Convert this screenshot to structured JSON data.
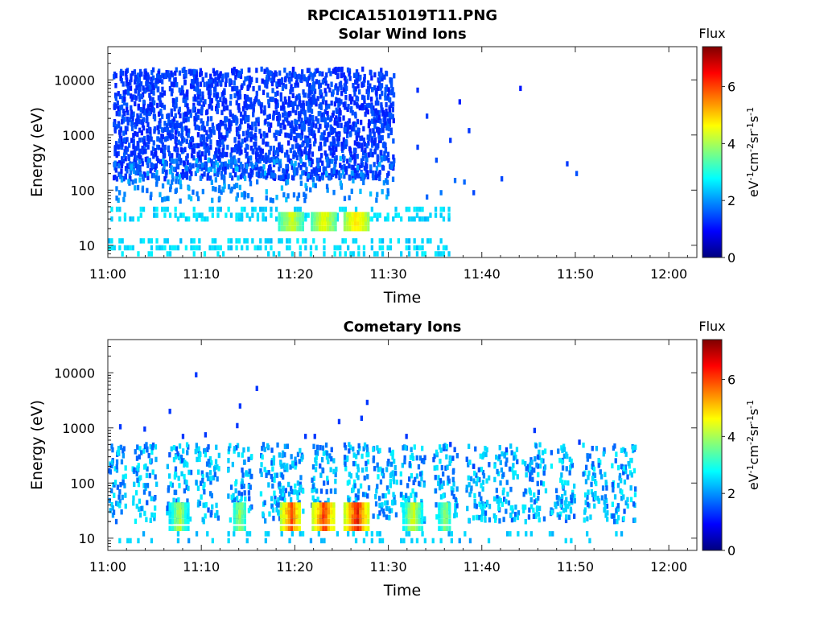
{
  "figure_title": "RPCICA151019T11.PNG",
  "colors": {
    "colormap": [
      "#00007f",
      "#0000ff",
      "#007fff",
      "#00ffff",
      "#7fff7f",
      "#ffff00",
      "#ff7f00",
      "#ff0000",
      "#7f0000"
    ]
  },
  "chart_data": [
    {
      "type": "heatmap",
      "title": "Solar Wind Ions",
      "xlabel": "Time",
      "ylabel": "Energy (eV)",
      "x_ticks": [
        "11:00",
        "11:10",
        "11:20",
        "11:30",
        "11:40",
        "11:50",
        "12:00"
      ],
      "x_range_minutes": [
        0,
        63
      ],
      "y_scale": "log",
      "y_ticks": [
        10,
        100,
        1000,
        10000
      ],
      "y_tick_labels": [
        "10",
        "100",
        "1000",
        "10000"
      ],
      "y_range": [
        6,
        40000
      ],
      "colorbar": {
        "title": "Flux",
        "unit_label": "eV-1cm-2sr-1s-1",
        "range": [
          0,
          7.4
        ],
        "ticks": [
          "0",
          "2",
          "4",
          "6"
        ]
      },
      "grid": false,
      "summary": {
        "high_energy_counts_until_minute": 34,
        "peak_flux_near_minutes": [
          19.5,
          23,
          26.5
        ],
        "peak_energy_eV": 25
      }
    },
    {
      "type": "heatmap",
      "title": "Cometary Ions",
      "xlabel": "Time",
      "ylabel": "Energy (eV)",
      "x_ticks": [
        "11:00",
        "11:10",
        "11:20",
        "11:30",
        "11:40",
        "11:50",
        "12:00"
      ],
      "x_range_minutes": [
        0,
        63
      ],
      "y_scale": "log",
      "y_ticks": [
        10,
        100,
        1000,
        10000
      ],
      "y_tick_labels": [
        "10",
        "100",
        "1000",
        "10000"
      ],
      "y_range": [
        6,
        40000
      ],
      "colorbar": {
        "title": "Flux",
        "unit_label": "eV-1cm-2sr-1s-1",
        "range": [
          0,
          7.4
        ],
        "ticks": [
          "0",
          "2",
          "4",
          "6"
        ]
      },
      "grid": false,
      "summary": {
        "bursts_at_minutes": [
          0.5,
          3.8,
          7.5,
          10.5,
          14,
          17.5,
          19.5,
          23,
          26.5,
          29.5,
          32.5,
          36,
          39.5,
          42.5,
          45.5,
          48.5,
          52,
          55
        ],
        "peak_flux_near_minutes": [
          19.5,
          23,
          26.5
        ],
        "peak_energy_eV": 25
      }
    }
  ]
}
